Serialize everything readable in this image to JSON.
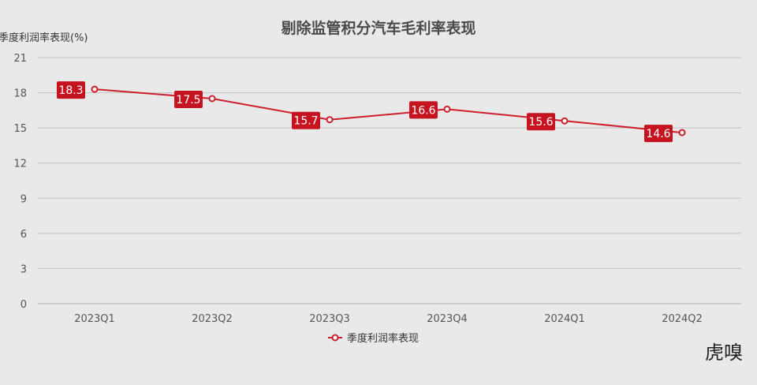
{
  "chart_data": {
    "type": "line",
    "title": "剔除监管积分汽车毛利率表现",
    "ylabel": "季度利润率表现(%)",
    "xlabel": "",
    "categories": [
      "2023Q1",
      "2023Q2",
      "2023Q3",
      "2023Q4",
      "2024Q1",
      "2024Q2"
    ],
    "series": [
      {
        "name": "季度利润率表现",
        "values": [
          18.3,
          17.5,
          15.7,
          16.6,
          15.6,
          14.6
        ],
        "data_labels": [
          "18.3",
          "17.5",
          "15.7",
          "16.6",
          "15.6",
          "14.6"
        ]
      }
    ],
    "ylim": [
      0,
      21
    ],
    "yticks": [
      0,
      3,
      6,
      9,
      12,
      15,
      18,
      21
    ],
    "ytick_labels": [
      "0",
      "3",
      "6",
      "9",
      "12",
      "15",
      "18",
      "21"
    ],
    "grid": true,
    "legend_position": "bottom-center",
    "colors": {
      "series": "#cc1f2b",
      "label_box": "#c5141f",
      "grid": "#c2c2c4",
      "background": "#e9e9ea"
    }
  },
  "watermark": {
    "text": "虎嗅"
  }
}
